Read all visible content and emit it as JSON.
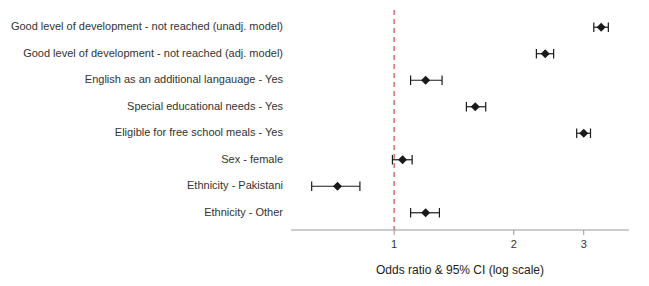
{
  "chart_data": {
    "type": "forest",
    "categories": [
      "Good level of development - not reached (unadj. model)",
      "Good level of development - not reached (adj. model)",
      "English as an additional langauage - Yes",
      "Special educational needs - Yes",
      "Eligible for free school meals - Yes",
      "Sex - female",
      "Ethnicity - Pakistani",
      "Ethnicity - Other"
    ],
    "values": [
      3.32,
      2.4,
      1.2,
      1.6,
      3.0,
      1.05,
      0.72,
      1.2
    ],
    "ci_low": [
      3.18,
      2.28,
      1.1,
      1.52,
      2.88,
      0.99,
      0.62,
      1.1
    ],
    "ci_high": [
      3.46,
      2.52,
      1.32,
      1.7,
      3.12,
      1.11,
      0.82,
      1.3
    ],
    "color": "#1a1a1a",
    "marker": "diamond",
    "reference_lines": [
      {
        "x": 1.0,
        "color": "#e07070",
        "line_style": "dashed"
      }
    ],
    "x_label": "Odds ratio & 95% CI (log scale)",
    "xlim": [
      0.55,
      3.9
    ],
    "xticks": [
      1,
      2,
      3
    ],
    "log": "x",
    "grid": false
  }
}
